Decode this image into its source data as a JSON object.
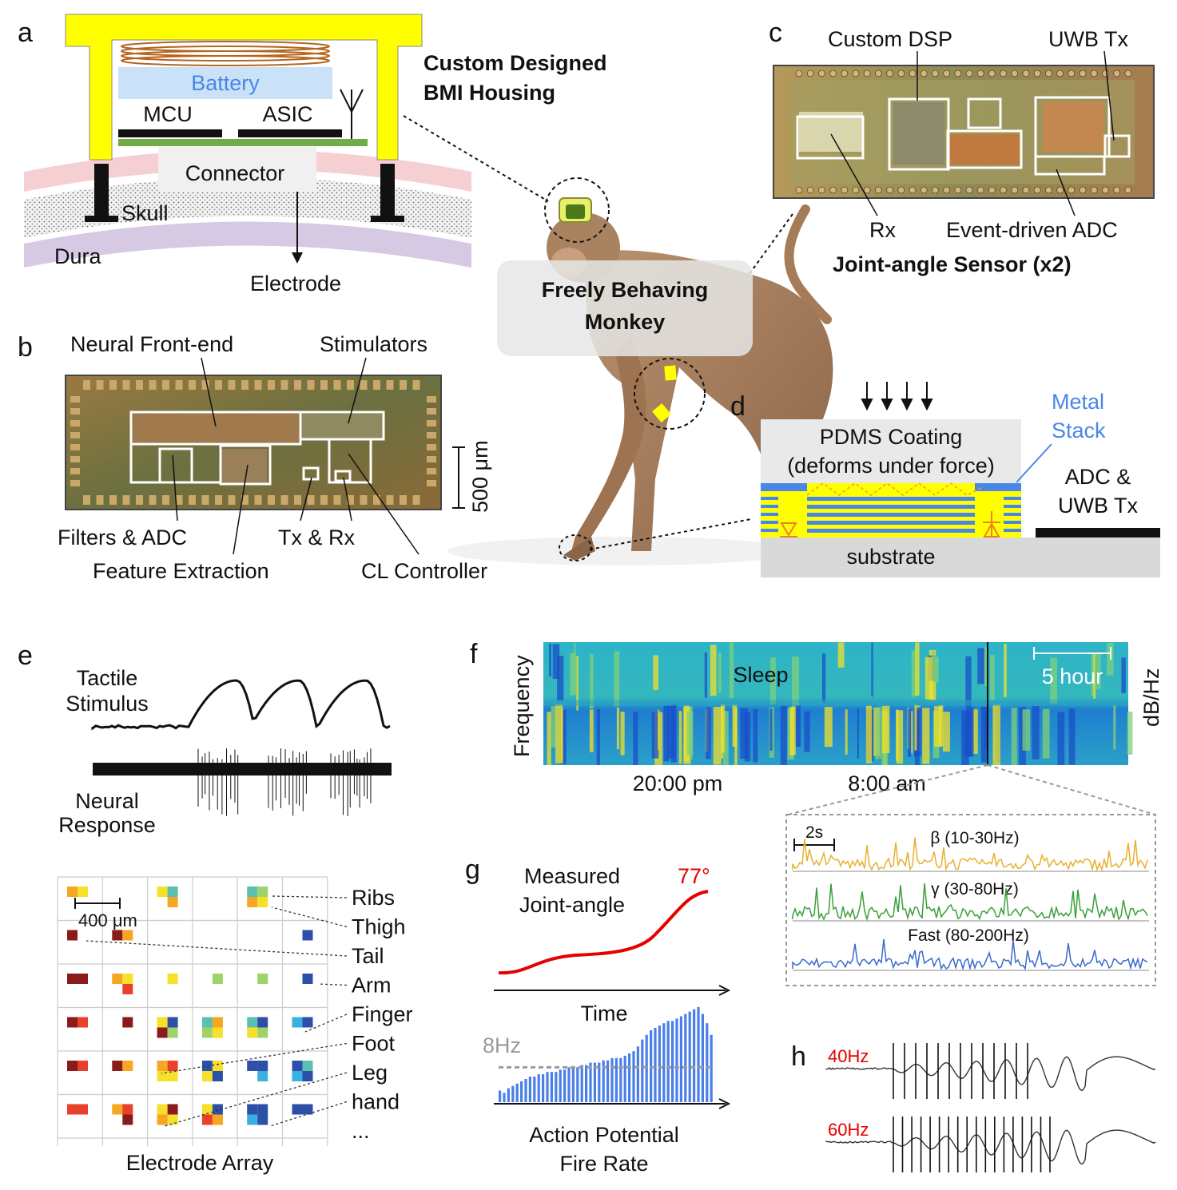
{
  "panels": {
    "a": {
      "letter": "a",
      "battery": "Battery",
      "mcu": "MCU",
      "asic": "ASIC",
      "connector": "Connector",
      "skull": "Skull",
      "dura": "Dura",
      "electrode": "Electrode",
      "housing_line1": "Custom Designed",
      "housing_line2": "BMI Housing"
    },
    "b": {
      "letter": "b",
      "neural_frontend": "Neural Front-end",
      "stimulators": "Stimulators",
      "scale": "500 μm",
      "filters_adc": "Filters & ADC",
      "feature_extraction": "Feature Extraction",
      "tx_rx": "Tx & Rx",
      "cl_controller": "CL Controller"
    },
    "c": {
      "letter": "c",
      "custom_dsp": "Custom DSP",
      "uwb_tx": "UWB Tx",
      "rx": "Rx",
      "event_adc": "Event-driven ADC",
      "caption": "Joint-angle Sensor (x2)"
    },
    "monkey": {
      "line1": "Freely Behaving",
      "line2": "Monkey"
    },
    "d": {
      "letter": "d",
      "pdms_line1": "PDMS Coating",
      "pdms_line2": "(deforms under force)",
      "metal_line1": "Metal",
      "metal_line2": "Stack",
      "adc_line1": "ADC &",
      "adc_line2": "UWB Tx",
      "substrate": "substrate"
    },
    "e": {
      "letter": "e",
      "tactile_line1": "Tactile",
      "tactile_line2": "Stimulus",
      "neural_line1": "Neural",
      "neural_line2": "Response",
      "scale": "400 μm",
      "array_caption": "Electrode Array",
      "body_parts": [
        "Ribs",
        "Thigh",
        "Tail",
        "Arm",
        "Finger",
        "Foot",
        "Leg",
        "hand",
        "..."
      ]
    },
    "f": {
      "letter": "f",
      "ylabel": "Frequency",
      "colorbar_label": "dB/Hz",
      "sleep": "Sleep",
      "scale": "5 hour",
      "time1": "20:00 pm",
      "time2": "8:00 am",
      "inset_scale": "2s",
      "bands": [
        "β (10-30Hz)",
        "γ (30-80Hz)",
        "Fast (80-200Hz)"
      ]
    },
    "g": {
      "letter": "g",
      "measured_line1": "Measured",
      "measured_line2": "Joint-angle",
      "angle": "77°",
      "time": "Time",
      "threshold": "8Hz",
      "ap_line1": "Action Potential",
      "ap_line2": "Fire Rate"
    },
    "h": {
      "letter": "h",
      "freq1": "40Hz",
      "freq2": "60Hz"
    }
  },
  "colors": {
    "yellow": "#ffff00",
    "battery_fill": "#c9e2f7",
    "battery_text": "#4a86e8",
    "pcb_green": "#70ad47",
    "metal_blue": "#4a86e8",
    "bar_blue": "#4a7ee8",
    "angle_red": "#e60000",
    "freq_red": "#e60000"
  },
  "chart_data": {
    "type": "bar",
    "title": "",
    "xlabel": "Time",
    "ylabel": "",
    "values": [
      5,
      4,
      6,
      7,
      8,
      9,
      10,
      11,
      11,
      12,
      12,
      13,
      13,
      13,
      14,
      14,
      15,
      15,
      15,
      16,
      16,
      17,
      17,
      17,
      18,
      18,
      19,
      19,
      19,
      20,
      21,
      22,
      24,
      27,
      29,
      31,
      32,
      33,
      34,
      35,
      35,
      36,
      37,
      38,
      39,
      40,
      41,
      38,
      34,
      29
    ],
    "threshold": 15
  }
}
